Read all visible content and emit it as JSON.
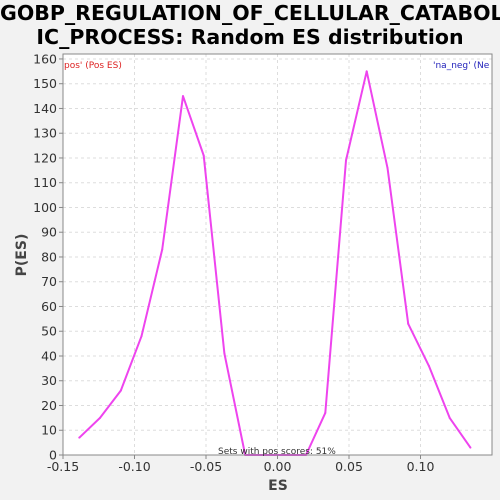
{
  "chart_data": {
    "type": "line",
    "title": [
      "GOBP_REGULATION_OF_CELLULAR_CATABOL",
      "IC_PROCESS: Random ES distribution"
    ],
    "xlabel": "ES",
    "ylabel": "P(ES)",
    "xlim": [
      -0.15,
      0.15
    ],
    "ylim": [
      0,
      162
    ],
    "xticks": [
      -0.15,
      -0.1,
      -0.05,
      0.0,
      0.05,
      0.1
    ],
    "xtick_labels": [
      "-0.15",
      "-0.10",
      "-0.05",
      "0.00",
      "0.05",
      "0.10"
    ],
    "yticks": [
      0,
      10,
      20,
      30,
      40,
      50,
      60,
      70,
      80,
      90,
      100,
      110,
      120,
      130,
      140,
      150,
      160
    ],
    "grid": true,
    "series": [
      {
        "name": "distribution",
        "color": "#ee44ee",
        "x": [
          -0.1386,
          -0.1241,
          -0.1096,
          -0.0951,
          -0.0806,
          -0.0661,
          -0.0516,
          -0.0371,
          -0.0226,
          -0.0081,
          0.0064,
          0.0199,
          0.0334,
          0.0479,
          0.0624,
          0.0769,
          0.0914,
          0.1059,
          0.1204,
          0.1349
        ],
        "y": [
          7,
          15,
          26,
          48,
          83,
          145,
          121,
          41,
          0,
          0,
          0,
          0,
          17,
          119,
          155,
          116,
          53,
          36,
          15,
          3
        ]
      }
    ],
    "legend_left": "pos' (Pos ES)",
    "legend_right": "'na_neg' (Ne",
    "legend_left_color": "#dd2222",
    "legend_right_color": "#2222bb",
    "annotation": "Sets with pos scores: 51%"
  }
}
